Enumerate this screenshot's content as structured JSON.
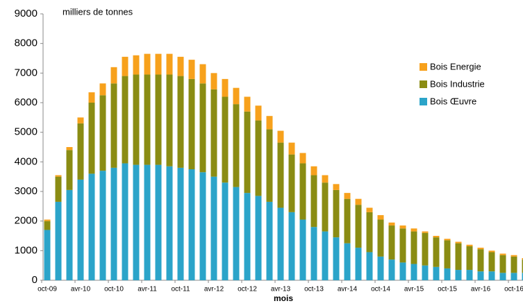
{
  "chart_data": {
    "type": "stacked_bar",
    "y_label": "milliers de tonnes",
    "x_label": "mois",
    "categories": [
      "oct-09",
      null,
      null,
      "avr-10",
      null,
      null,
      "oct-10",
      null,
      null,
      "avr-11",
      null,
      null,
      "oct-11",
      null,
      null,
      "avr-12",
      null,
      null,
      "oct-12",
      null,
      null,
      "avr-13",
      null,
      null,
      "oct-13",
      null,
      null,
      "avr-14",
      null,
      null,
      "oct-14",
      null,
      null,
      "avr-15",
      null,
      null,
      "oct-15",
      null,
      null,
      "avr-16",
      null,
      null,
      "oct-16",
      null
    ],
    "series": [
      {
        "name": "Bois Œuvre",
        "color": "#2ba4c9",
        "values": [
          1700,
          2650,
          3050,
          3400,
          3600,
          3700,
          3800,
          3950,
          3900,
          3900,
          3900,
          3850,
          3800,
          3750,
          3650,
          3500,
          3300,
          3150,
          2950,
          2850,
          2650,
          2450,
          2300,
          2050,
          1800,
          1650,
          1450,
          1250,
          1100,
          950,
          800,
          700,
          600,
          550,
          500,
          450,
          400,
          350,
          350,
          300,
          300,
          250,
          250,
          250
        ]
      },
      {
        "name": "Bois Industrie",
        "color": "#8a8c13",
        "values": [
          300,
          850,
          1350,
          1900,
          2400,
          2550,
          2850,
          2950,
          3050,
          3050,
          3050,
          3100,
          3100,
          3050,
          3000,
          2950,
          2900,
          2800,
          2750,
          2550,
          2450,
          2200,
          1950,
          1900,
          1750,
          1650,
          1600,
          1500,
          1450,
          1350,
          1250,
          1150,
          1150,
          1100,
          1100,
          1000,
          950,
          900,
          800,
          750,
          650,
          600,
          550,
          450
        ]
      },
      {
        "name": "Bois Energie",
        "color": "#f7a11c",
        "values": [
          50,
          50,
          100,
          200,
          350,
          400,
          550,
          650,
          650,
          700,
          700,
          700,
          650,
          650,
          650,
          550,
          600,
          550,
          500,
          500,
          450,
          400,
          400,
          350,
          300,
          250,
          200,
          200,
          200,
          150,
          150,
          100,
          100,
          100,
          50,
          50,
          50,
          50,
          50,
          50,
          50,
          50,
          50,
          50
        ]
      }
    ],
    "ylim": [
      0,
      9000
    ],
    "yticks": [
      0,
      1000,
      2000,
      3000,
      4000,
      5000,
      6000,
      7000,
      8000,
      9000
    ]
  }
}
